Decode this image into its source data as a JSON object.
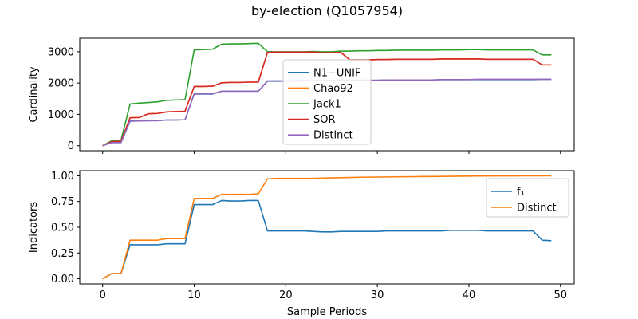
{
  "figure": {
    "title": "by-election (Q1057954)",
    "xlabel": "Sample Periods"
  },
  "chart_data": [
    {
      "type": "line",
      "ylabel": "Cardinality",
      "xlim": [
        -2.5,
        51.5
      ],
      "ylim": [
        -160,
        3430
      ],
      "xticks": [
        0,
        10,
        20,
        30,
        40,
        50
      ],
      "xticklabels_visible": false,
      "yticks": [
        0,
        1000,
        2000,
        3000
      ],
      "yticklabels": [
        "0",
        "1000",
        "2000",
        "3000"
      ],
      "legend_position": "center",
      "x": [
        0,
        1,
        2,
        3,
        4,
        5,
        6,
        7,
        8,
        9,
        10,
        11,
        12,
        13,
        14,
        15,
        16,
        17,
        18,
        19,
        20,
        21,
        22,
        23,
        24,
        25,
        26,
        27,
        28,
        29,
        30,
        31,
        32,
        33,
        34,
        35,
        36,
        37,
        38,
        39,
        40,
        41,
        42,
        43,
        44,
        45,
        46,
        47,
        48,
        49
      ],
      "series": [
        {
          "name": "N1−UNIF",
          "color": "#1f77b4",
          "values": [
            0,
            100,
            100,
            780,
            790,
            800,
            800,
            820,
            820,
            830,
            1650,
            1650,
            1650,
            1740,
            1740,
            1740,
            1740,
            1740,
            2060,
            2060,
            2060,
            2070,
            2070,
            2080,
            2080,
            2080,
            2090,
            2090,
            2090,
            2090,
            2090,
            2100,
            2100,
            2100,
            2100,
            2100,
            2100,
            2110,
            2110,
            2110,
            2110,
            2110,
            2110,
            2110,
            2110,
            2110,
            2110,
            2110,
            2120,
            2120
          ]
        },
        {
          "name": "Chao92",
          "color": "#ff7f0e",
          "values": [
            0,
            130,
            140,
            900,
            900,
            1020,
            1030,
            1080,
            1090,
            1100,
            1890,
            1890,
            1900,
            2010,
            2020,
            2020,
            2030,
            2030,
            2980,
            2990,
            2990,
            2990,
            2990,
            2990,
            2970,
            2970,
            2980,
            2740,
            2740,
            2740,
            2750,
            2750,
            2760,
            2760,
            2760,
            2760,
            2760,
            2770,
            2770,
            2770,
            2770,
            2770,
            2760,
            2760,
            2760,
            2760,
            2760,
            2760,
            2580,
            2580
          ]
        },
        {
          "name": "Jack1",
          "color": "#2ca02c",
          "values": [
            0,
            160,
            170,
            1330,
            1360,
            1380,
            1400,
            1450,
            1460,
            1470,
            3060,
            3070,
            3080,
            3240,
            3250,
            3250,
            3260,
            3270,
            3000,
            3000,
            3000,
            3000,
            3000,
            3010,
            3000,
            3000,
            3020,
            3020,
            3030,
            3030,
            3040,
            3040,
            3050,
            3050,
            3050,
            3050,
            3050,
            3060,
            3060,
            3060,
            3070,
            3070,
            3060,
            3060,
            3060,
            3060,
            3060,
            3060,
            2900,
            2900
          ]
        },
        {
          "name": "SOR",
          "color": "#d62728",
          "values": [
            0,
            130,
            140,
            890,
            900,
            1020,
            1030,
            1080,
            1090,
            1100,
            1890,
            1890,
            1900,
            2010,
            2020,
            2020,
            2030,
            2030,
            2980,
            2990,
            2990,
            2990,
            2990,
            2990,
            2970,
            2970,
            2980,
            2740,
            2740,
            2740,
            2750,
            2750,
            2760,
            2760,
            2760,
            2760,
            2760,
            2770,
            2770,
            2770,
            2770,
            2770,
            2760,
            2760,
            2760,
            2760,
            2760,
            2760,
            2580,
            2580
          ]
        },
        {
          "name": "Distinct",
          "color": "#9467bd",
          "values": [
            0,
            100,
            100,
            790,
            790,
            800,
            800,
            820,
            820,
            830,
            1660,
            1660,
            1660,
            1740,
            1740,
            1740,
            1740,
            1740,
            2070,
            2070,
            2070,
            2080,
            2080,
            2080,
            2080,
            2090,
            2090,
            2090,
            2090,
            2090,
            2090,
            2100,
            2100,
            2100,
            2100,
            2100,
            2100,
            2110,
            2110,
            2110,
            2110,
            2120,
            2120,
            2120,
            2120,
            2120,
            2120,
            2120,
            2120,
            2120
          ]
        }
      ]
    },
    {
      "type": "line",
      "ylabel": "Indicators",
      "xlim": [
        -2.5,
        51.5
      ],
      "ylim": [
        -0.05,
        1.05
      ],
      "xticks": [
        0,
        10,
        20,
        30,
        40,
        50
      ],
      "xticklabels": [
        "0",
        "10",
        "20",
        "30",
        "40",
        "50"
      ],
      "yticks": [
        0,
        0.25,
        0.5,
        0.75,
        1.0
      ],
      "yticklabels": [
        "0.00",
        "0.25",
        "0.50",
        "0.75",
        "1.00"
      ],
      "legend_position": "upper right",
      "x": [
        0,
        1,
        2,
        3,
        4,
        5,
        6,
        7,
        8,
        9,
        10,
        11,
        12,
        13,
        14,
        15,
        16,
        17,
        18,
        19,
        20,
        21,
        22,
        23,
        24,
        25,
        26,
        27,
        28,
        29,
        30,
        31,
        32,
        33,
        34,
        35,
        36,
        37,
        38,
        39,
        40,
        41,
        42,
        43,
        44,
        45,
        46,
        47,
        48,
        49
      ],
      "series": [
        {
          "name": "f₁",
          "color": "#1f77b4",
          "values": [
            0,
            0.05,
            0.05,
            0.33,
            0.33,
            0.33,
            0.33,
            0.34,
            0.34,
            0.34,
            0.72,
            0.72,
            0.72,
            0.76,
            0.755,
            0.755,
            0.76,
            0.76,
            0.465,
            0.465,
            0.465,
            0.465,
            0.465,
            0.46,
            0.455,
            0.455,
            0.46,
            0.46,
            0.46,
            0.46,
            0.46,
            0.465,
            0.465,
            0.465,
            0.465,
            0.465,
            0.465,
            0.465,
            0.47,
            0.47,
            0.47,
            0.47,
            0.465,
            0.465,
            0.465,
            0.465,
            0.465,
            0.465,
            0.375,
            0.37
          ]
        },
        {
          "name": "Distinct",
          "color": "#ff7f0e",
          "values": [
            0,
            0.05,
            0.05,
            0.375,
            0.375,
            0.375,
            0.375,
            0.39,
            0.39,
            0.39,
            0.78,
            0.78,
            0.78,
            0.82,
            0.82,
            0.82,
            0.82,
            0.825,
            0.97,
            0.975,
            0.975,
            0.975,
            0.975,
            0.975,
            0.978,
            0.98,
            0.982,
            0.984,
            0.986,
            0.987,
            0.988,
            0.989,
            0.99,
            0.991,
            0.992,
            0.993,
            0.993,
            0.994,
            0.995,
            0.996,
            0.997,
            0.998,
            0.998,
            0.999,
            0.999,
            0.999,
            1.0,
            1.0,
            1.0,
            1.0
          ]
        }
      ]
    }
  ]
}
